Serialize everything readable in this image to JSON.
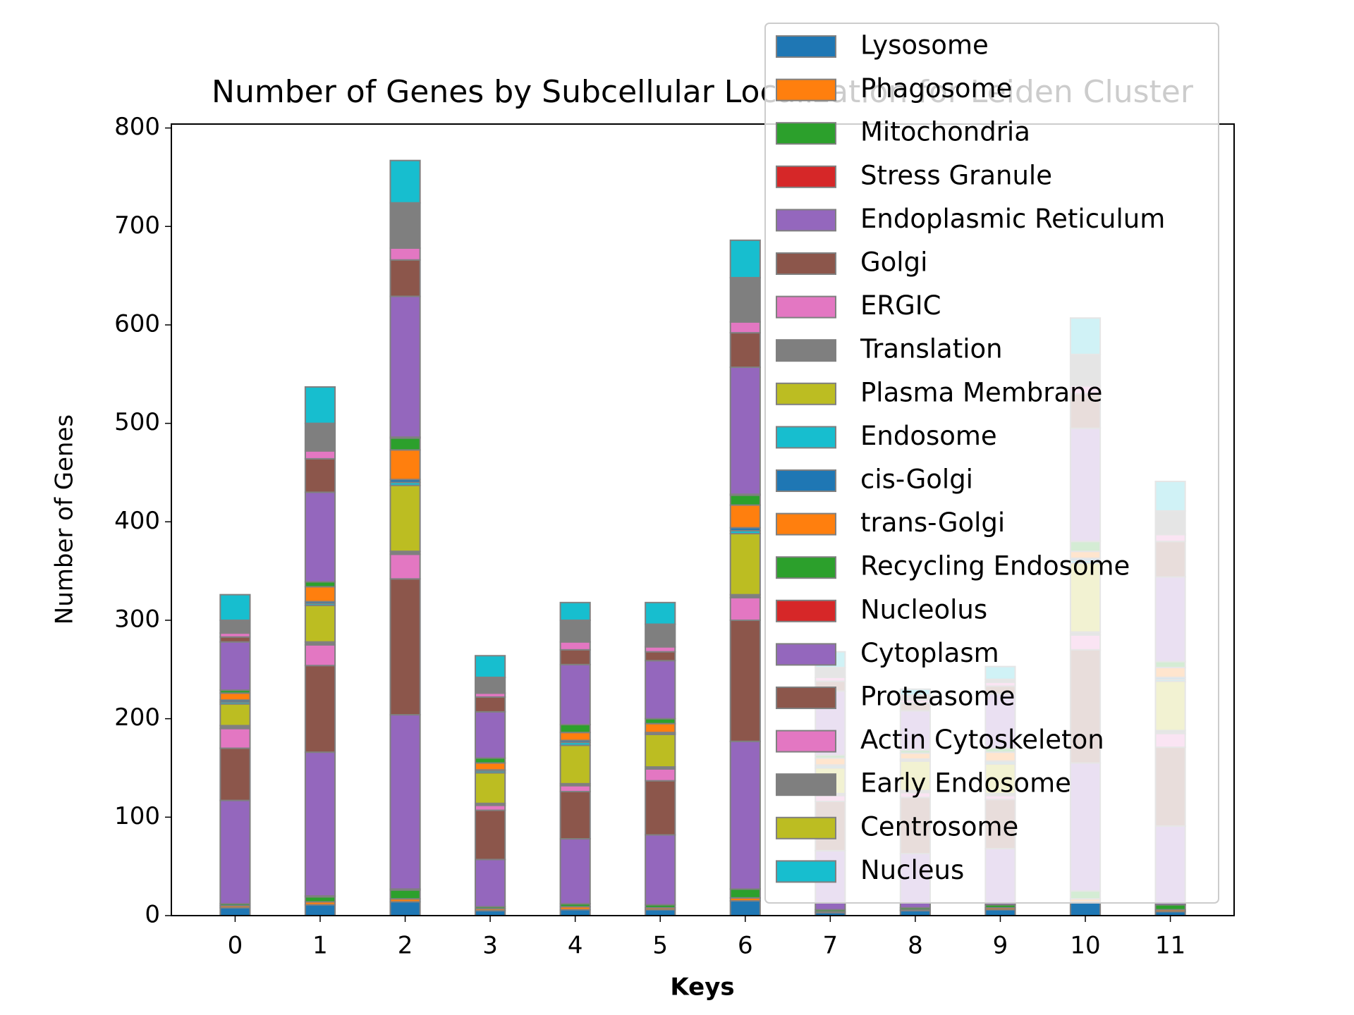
{
  "chart_data": {
    "type": "stacked_bar",
    "title": "Number of Genes by Subcellular Localization for Leiden Cluster",
    "x_label": "Keys",
    "y_label": "Number of Genes",
    "categories": [
      "0",
      "1",
      "2",
      "3",
      "4",
      "5",
      "6",
      "7",
      "8",
      "9",
      "10",
      "11"
    ],
    "ylim": [
      0,
      804
    ],
    "yticks": [
      0,
      100,
      200,
      300,
      400,
      500,
      600,
      700,
      800
    ],
    "legend_position": "upper right",
    "series": [
      {
        "name": "Lysosome",
        "color": "#1f77b4",
        "values": [
          8,
          11,
          14,
          5,
          6,
          6,
          15,
          3,
          5,
          6,
          14,
          4
        ]
      },
      {
        "name": "Phagosome",
        "color": "#ff7f0e",
        "values": [
          2,
          3,
          3,
          2,
          3,
          2,
          3,
          1,
          1,
          2,
          3,
          2
        ]
      },
      {
        "name": "Mitochondria",
        "color": "#2ca02c",
        "values": [
          2,
          5,
          9,
          2,
          3,
          3,
          9,
          2,
          2,
          3,
          8,
          5
        ]
      },
      {
        "name": "Stress Granule",
        "color": "#d62728",
        "values": [
          0,
          1,
          1,
          0,
          0,
          0,
          0,
          0,
          0,
          0,
          0,
          0
        ]
      },
      {
        "name": "Endoplasmic Reticulum",
        "color": "#9467bd",
        "values": [
          105,
          146,
          177,
          48,
          66,
          71,
          150,
          60,
          55,
          57,
          130,
          80
        ]
      },
      {
        "name": "Golgi",
        "color": "#8c564b",
        "values": [
          53,
          88,
          138,
          50,
          48,
          55,
          123,
          50,
          57,
          50,
          115,
          80
        ]
      },
      {
        "name": "ERGIC",
        "color": "#e377c2",
        "values": [
          20,
          21,
          25,
          5,
          6,
          12,
          23,
          6,
          5,
          4,
          15,
          14
        ]
      },
      {
        "name": "Translation",
        "color": "#7f7f7f",
        "values": [
          3,
          3,
          3,
          2,
          2,
          2,
          3,
          2,
          2,
          2,
          3,
          3
        ]
      },
      {
        "name": "Plasma Membrane",
        "color": "#bcbd22",
        "values": [
          22,
          37,
          67,
          31,
          39,
          33,
          62,
          26,
          30,
          30,
          70,
          50
        ]
      },
      {
        "name": "Endosome",
        "color": "#17becf",
        "values": [
          2,
          2,
          3,
          2,
          3,
          1,
          3,
          2,
          1,
          2,
          3,
          2
        ]
      },
      {
        "name": "cis-Golgi",
        "color": "#1f77b4",
        "values": [
          2,
          2,
          3,
          1,
          2,
          1,
          3,
          1,
          1,
          1,
          2,
          2
        ]
      },
      {
        "name": "trans-Golgi",
        "color": "#ff7f0e",
        "values": [
          7,
          15,
          30,
          7,
          8,
          9,
          23,
          7,
          6,
          9,
          7,
          10
        ]
      },
      {
        "name": "Recycling Endosome",
        "color": "#2ca02c",
        "values": [
          3,
          5,
          12,
          5,
          8,
          5,
          10,
          3,
          3,
          4,
          10,
          6
        ]
      },
      {
        "name": "Nucleolus",
        "color": "#d62728",
        "values": [
          0,
          0,
          1,
          0,
          0,
          0,
          1,
          0,
          0,
          0,
          0,
          0
        ]
      },
      {
        "name": "Cytoplasm",
        "color": "#9467bd",
        "values": [
          49,
          91,
          143,
          47,
          61,
          59,
          129,
          65,
          40,
          55,
          115,
          86
        ]
      },
      {
        "name": "Proteasome",
        "color": "#8c564b",
        "values": [
          5,
          34,
          37,
          15,
          15,
          9,
          35,
          10,
          8,
          8,
          35,
          36
        ]
      },
      {
        "name": "Actin Cytoskeleton",
        "color": "#e377c2",
        "values": [
          4,
          8,
          12,
          4,
          8,
          5,
          11,
          4,
          3,
          4,
          8,
          7
        ]
      },
      {
        "name": "Early Endosome",
        "color": "#7f7f7f",
        "values": [
          13,
          28,
          46,
          16,
          22,
          23,
          45,
          10,
          5,
          3,
          32,
          24
        ]
      },
      {
        "name": "Centrosome",
        "color": "#bcbd22",
        "values": [
          0,
          0,
          0,
          0,
          0,
          0,
          0,
          0,
          0,
          0,
          0,
          0
        ]
      },
      {
        "name": "Nucleus",
        "color": "#17becf",
        "values": [
          26,
          37,
          43,
          22,
          18,
          22,
          38,
          16,
          6,
          13,
          37,
          30
        ]
      }
    ]
  }
}
